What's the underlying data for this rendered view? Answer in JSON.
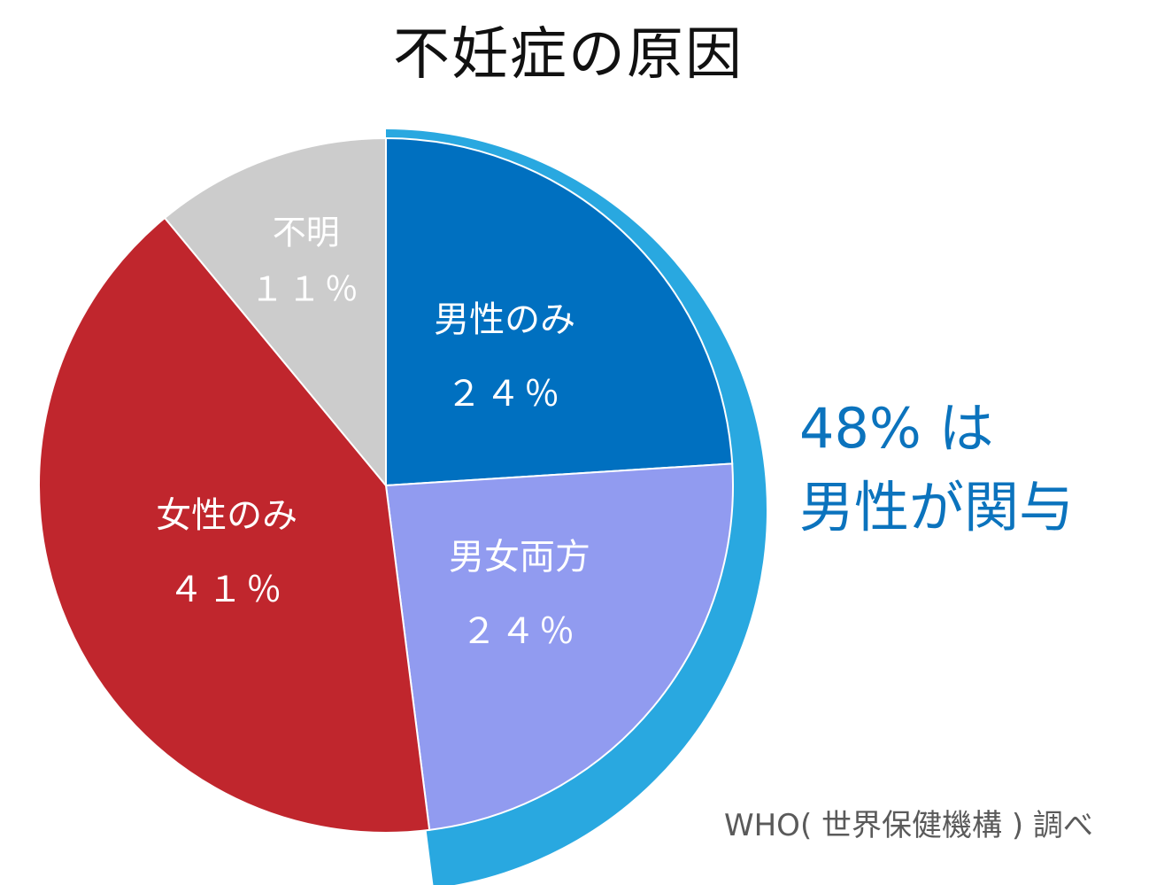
{
  "chart_data": {
    "type": "pie",
    "title": "不妊症の原因",
    "slices": [
      {
        "name": "男性のみ",
        "label": "２４％",
        "value": 24,
        "color": "#0070c0"
      },
      {
        "name": "男女両方",
        "label": "２４％",
        "value": 24,
        "color": "#919bf0"
      },
      {
        "name": "女性のみ",
        "label": "４１％",
        "value": 41,
        "color": "#c0262d"
      },
      {
        "name": "不明",
        "label": "１１％",
        "value": 11,
        "color": "#cccccc"
      }
    ],
    "highlight": {
      "covers": [
        "男性のみ",
        "男女両方"
      ],
      "value": 48,
      "color": "#29a8e0",
      "label_line1": "48% は",
      "label_line2": "男性が関与",
      "text_color": "#0b73bd"
    },
    "source": "WHO( 世界保健機構 ) 調べ"
  }
}
